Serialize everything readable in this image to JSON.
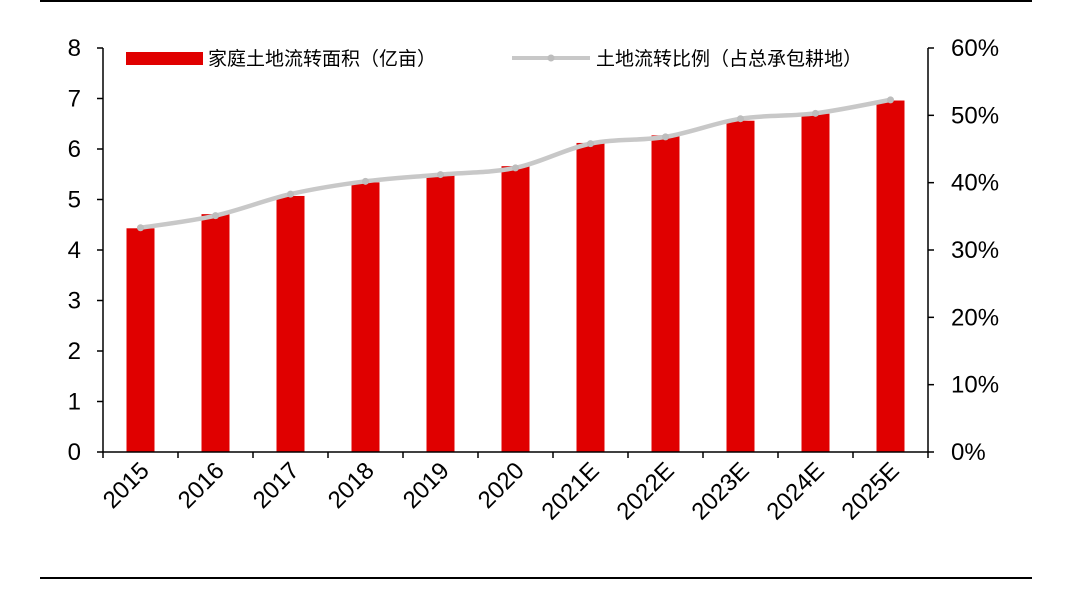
{
  "chart_data": {
    "type": "bar+line",
    "categories": [
      "2015",
      "2016",
      "2017",
      "2018",
      "2019",
      "2020",
      "2021E",
      "2022E",
      "2023E",
      "2024E",
      "2025E"
    ],
    "series": [
      {
        "name": "家庭土地流转面积（亿亩）",
        "type": "bar",
        "axis": "left",
        "values": [
          4.43,
          4.71,
          5.07,
          5.34,
          5.5,
          5.66,
          6.12,
          6.27,
          6.56,
          6.7,
          6.96
        ]
      },
      {
        "name": "土地流转比例（占总承包耕地）",
        "type": "line",
        "axis": "right",
        "values": [
          33.3,
          35.1,
          38.3,
          40.2,
          41.2,
          42.2,
          45.8,
          46.8,
          49.5,
          50.3,
          52.3
        ]
      }
    ],
    "left_axis": {
      "min": 0,
      "max": 8,
      "ticks": [
        "0",
        "1",
        "2",
        "3",
        "4",
        "5",
        "6",
        "7",
        "8"
      ]
    },
    "right_axis": {
      "min": 0,
      "max": 60,
      "ticks": [
        "0%",
        "10%",
        "20%",
        "30%",
        "40%",
        "50%",
        "60%"
      ]
    },
    "legend_placement": "top",
    "grid": false,
    "colors": {
      "bar": "#e00000",
      "line": "#c8c8c8",
      "marker": "#bdbdbd"
    }
  }
}
